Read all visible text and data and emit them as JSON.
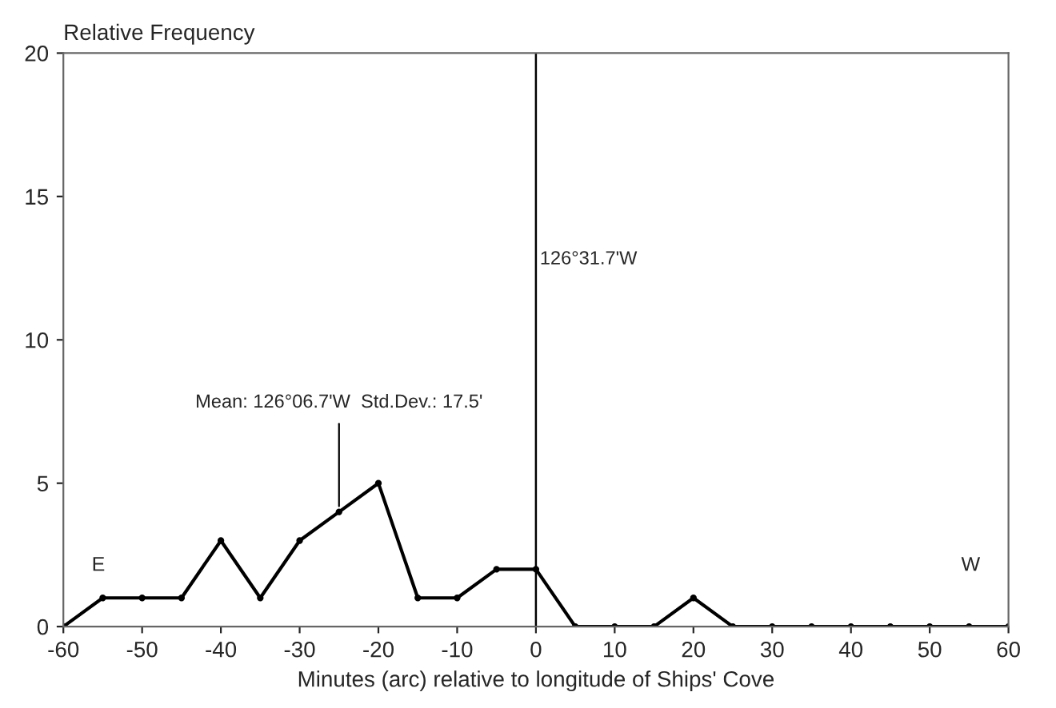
{
  "chart_data": {
    "type": "line",
    "ylabel": "Relative Frequency",
    "xlabel": "Minutes (arc) relative to longitude of Ships' Cove",
    "x": [
      -60,
      -55,
      -50,
      -45,
      -40,
      -35,
      -30,
      -25,
      -20,
      -15,
      -10,
      -5,
      0,
      5,
      10,
      15,
      20,
      25,
      30,
      35,
      40,
      45,
      50,
      55,
      60
    ],
    "series": [
      {
        "color": "#000000",
        "values": [
          0,
          1,
          1,
          1,
          3,
          1,
          3,
          4,
          5,
          1,
          1,
          2,
          2,
          0,
          0,
          0,
          1,
          0,
          0,
          0,
          0,
          0,
          0,
          0,
          0
        ]
      }
    ],
    "xlim": [
      -60,
      60
    ],
    "xticks": [
      -60,
      -50,
      -40,
      -30,
      -20,
      -10,
      0,
      10,
      20,
      30,
      40,
      50,
      60
    ],
    "ylim": [
      0,
      20
    ],
    "yticks": [
      0,
      5,
      10,
      15,
      20
    ],
    "ref_lines": [
      {
        "axis": "x",
        "value": 0,
        "label": "126°31.7'W",
        "color": "#000000"
      }
    ],
    "annotations": [
      {
        "text": "Mean: 126°06.7'W  Std.Dev.: 17.5'",
        "x": -25,
        "y": 4
      },
      "E",
      "W"
    ],
    "marker": "circle",
    "line_style": "solid",
    "grid": false
  }
}
